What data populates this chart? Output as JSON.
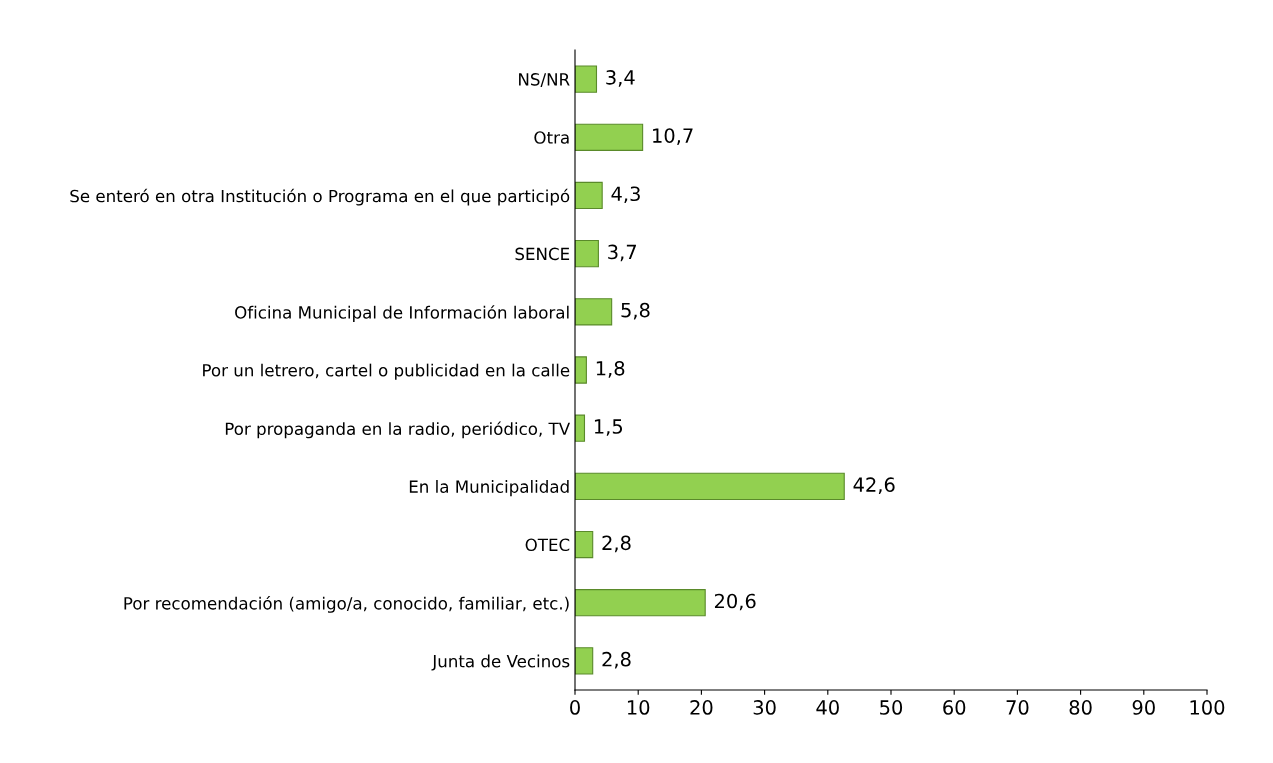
{
  "chart_data": {
    "type": "bar",
    "orientation": "horizontal",
    "categories": [
      "NS/NR",
      "Otra",
      "Se enteró en otra Institución o Programa en el que participó",
      "SENCE",
      "Oficina Municipal de Información laboral",
      "Por un letrero, cartel o publicidad en la calle",
      "Por propaganda en la radio, periódico, TV",
      "En la Municipalidad",
      "OTEC",
      "Por recomendación (amigo/a, conocido, familiar, etc.)",
      "Junta de Vecinos"
    ],
    "values": [
      3.4,
      10.7,
      4.3,
      3.7,
      5.8,
      1.8,
      1.5,
      42.6,
      2.8,
      20.6,
      2.8
    ],
    "value_labels": [
      "3,4",
      "10,7",
      "4,3",
      "3,7",
      "5,8",
      "1,8",
      "1,5",
      "42,6",
      "2,8",
      "20,6",
      "2,8"
    ],
    "color": "#92d050",
    "xlim": [
      0,
      100
    ],
    "xticks": [
      0,
      10,
      20,
      30,
      40,
      50,
      60,
      70,
      80,
      90,
      100
    ],
    "grid": false,
    "legend": false
  }
}
